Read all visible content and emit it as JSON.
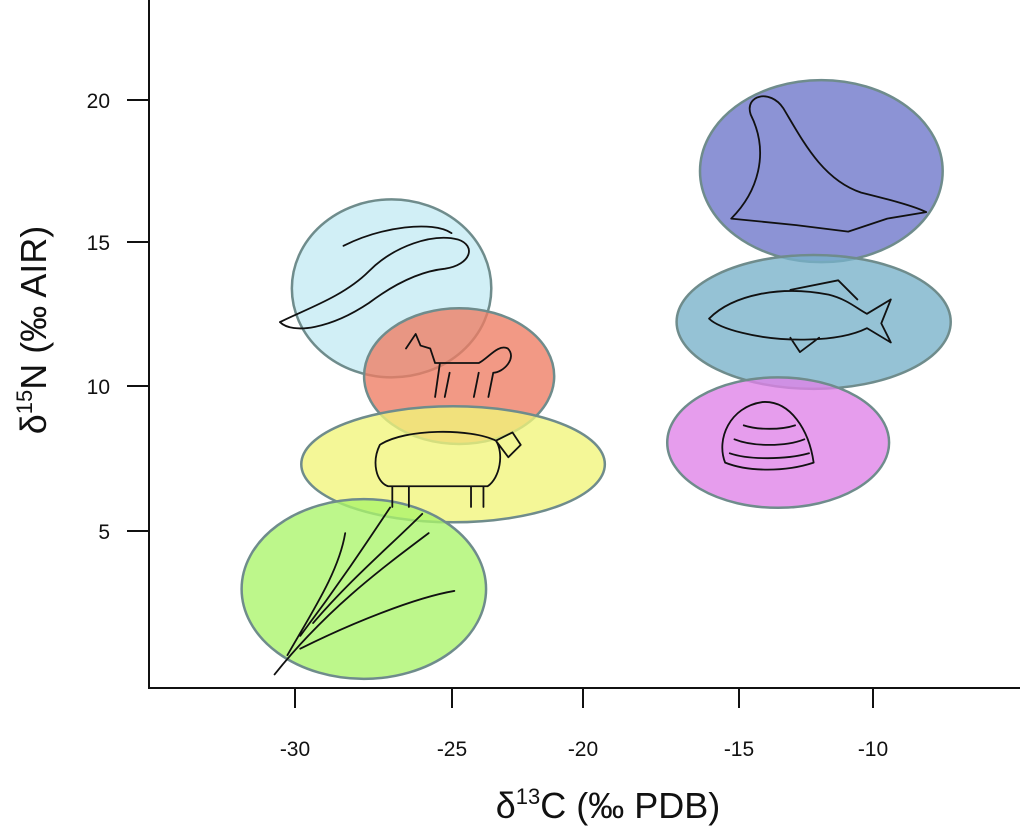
{
  "chart_data": {
    "type": "scatter",
    "title": "",
    "xlabel": {
      "delta": "δ",
      "sup": "13",
      "rest": "C (‰ PDB)"
    },
    "ylabel": {
      "delta": "δ",
      "sup": "15",
      "rest": "N (‰ AIR)"
    },
    "xlim": [
      -34.6,
      -4.5
    ],
    "ylim": [
      -0.4,
      23.5
    ],
    "x_ticks": [
      -30,
      -25,
      -20,
      -15,
      -10
    ],
    "y_ticks": [
      5,
      10,
      15,
      20
    ],
    "grid": false,
    "legend": "none",
    "groups": [
      {
        "icon": "eel-icon",
        "color": "#c4eaf3",
        "x_range": [
          -30.1,
          -23.5
        ],
        "y_range": [
          10.3,
          16.5
        ]
      },
      {
        "icon": "dog-icon",
        "color": "#ee7c63",
        "x_range": [
          -27.8,
          -21.1
        ],
        "y_range": [
          8.0,
          12.7
        ]
      },
      {
        "icon": "sheep-icon",
        "color": "#f1f57a",
        "x_range": [
          -29.8,
          -19.3
        ],
        "y_range": [
          5.3,
          9.3
        ]
      },
      {
        "icon": "wheat-icon",
        "color": "#abf56a",
        "x_range": [
          -31.7,
          -23.7
        ],
        "y_range": [
          -0.1,
          6.1
        ]
      },
      {
        "icon": "seal-icon",
        "color": "#6b74c9",
        "x_range": [
          -16.25,
          -7.4
        ],
        "y_range": [
          14.3,
          20.7
        ]
      },
      {
        "icon": "fish-icon",
        "color": "#77b1c9",
        "x_range": [
          -17.0,
          -7.1
        ],
        "y_range": [
          9.9,
          14.55
        ]
      },
      {
        "icon": "clam-icon",
        "color": "#df82e8",
        "x_range": [
          -17.3,
          -9.4
        ],
        "y_range": [
          5.8,
          10.3
        ]
      }
    ],
    "stroke_color": "#6f8c8c"
  }
}
